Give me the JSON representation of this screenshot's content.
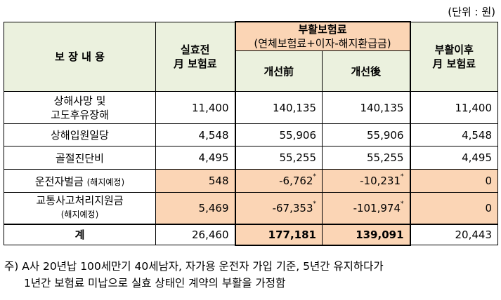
{
  "unit_label": "(단위 : 원)",
  "header": {
    "col1": "보 장 내 용",
    "col2_line1": "실효전",
    "col2_line2": "月 보험료",
    "group_title": "부활보험료",
    "group_sub": "(연체보험료+이자-해지환급금)",
    "sub_before": "개선前",
    "sub_after": "개선後",
    "col5_line1": "부활이후",
    "col5_line2": "月 보험료"
  },
  "rows": [
    {
      "label_line1": "상해사망 및",
      "label_line2": "고도후유장해",
      "premium": "11,400",
      "before": "140,135",
      "after": "140,135",
      "after_premium": "11,400"
    },
    {
      "label": "상해입원일당",
      "premium": "4,548",
      "before": "55,906",
      "after": "55,906",
      "after_premium": "4,548"
    },
    {
      "label": "골절진단비",
      "premium": "4,495",
      "before": "55,255",
      "after": "55,255",
      "after_premium": "4,495"
    },
    {
      "label": "운전자벌금",
      "label_note": "(해지예정)",
      "premium": "548",
      "before": "-6,762",
      "after": "-10,231",
      "after_premium": "0",
      "mark": "*"
    },
    {
      "label": "교통사고처리지원금",
      "label_note": "(해지예정)",
      "premium": "5,469",
      "before": "-67,353",
      "after": "-101,974",
      "after_premium": "0",
      "mark": "*"
    }
  ],
  "total": {
    "label": "계",
    "premium": "26,460",
    "before": "177,181",
    "after": "139,091",
    "after_premium": "20,443"
  },
  "note_line1": "주) A사 20년납 100세만기 40세남자, 자가용 운전자 가입 기준, 5년간 유지하다가",
  "note_line2": "1년간 보험료 미납으로 실효 상태인 계약의 부활을 가정함",
  "colors": {
    "header_bg": "#ebf1de",
    "highlight_bg": "#fbd5b5"
  }
}
